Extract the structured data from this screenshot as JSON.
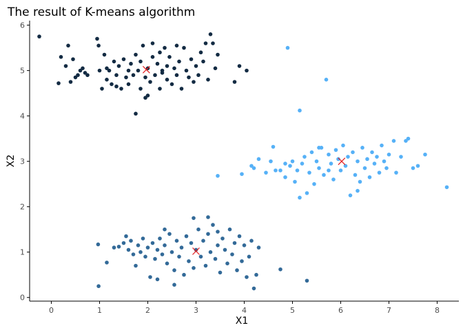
{
  "chart_data": {
    "type": "scatter",
    "title": "The result of K-means algorithm",
    "xlabel": "X1",
    "ylabel": "X2",
    "xlim": [
      -0.45,
      8.45
    ],
    "ylim": [
      -0.08,
      6.1
    ],
    "x_ticks": [
      0,
      1,
      2,
      3,
      4,
      5,
      6,
      7,
      8
    ],
    "y_ticks": [
      0,
      1,
      2,
      3,
      4,
      5,
      6
    ],
    "grid": false,
    "legend": "none",
    "colors": {
      "cluster_1": "#132b43",
      "cluster_2": "#336a98",
      "cluster_3": "#56b1f7",
      "centroid": "#e31a1c",
      "axis": "#000000",
      "tick_label": "#4d4d4d"
    },
    "series": [
      {
        "points": [
          [
            -0.25,
            5.75
          ],
          [
            0.15,
            4.72
          ],
          [
            0.2,
            5.3
          ],
          [
            0.3,
            5.1
          ],
          [
            0.35,
            5.55
          ],
          [
            0.4,
            4.75
          ],
          [
            0.45,
            5.25
          ],
          [
            0.5,
            4.85
          ],
          [
            0.55,
            4.9
          ],
          [
            0.6,
            5.0
          ],
          [
            0.65,
            5.05
          ],
          [
            0.75,
            4.9
          ],
          [
            0.95,
            5.7
          ],
          [
            0.98,
            5.55
          ],
          [
            1.0,
            5.0
          ],
          [
            1.05,
            4.6
          ],
          [
            1.1,
            5.35
          ],
          [
            1.15,
            4.8
          ],
          [
            1.15,
            5.05
          ],
          [
            1.2,
            5.0
          ],
          [
            1.25,
            4.7
          ],
          [
            1.3,
            5.2
          ],
          [
            1.35,
            4.9
          ],
          [
            1.4,
            5.1
          ],
          [
            1.45,
            4.6
          ],
          [
            1.5,
            5.25
          ],
          [
            1.55,
            4.85
          ],
          [
            1.6,
            5.0
          ],
          [
            1.6,
            4.7
          ],
          [
            1.65,
            5.15
          ],
          [
            1.7,
            4.9
          ],
          [
            1.75,
            5.35
          ],
          [
            1.75,
            4.05
          ],
          [
            1.8,
            5.0
          ],
          [
            1.85,
            5.2
          ],
          [
            1.85,
            4.6
          ],
          [
            1.9,
            5.55
          ],
          [
            1.95,
            4.85
          ],
          [
            2.0,
            5.05
          ],
          [
            2.0,
            4.45
          ],
          [
            2.05,
            4.75
          ],
          [
            2.1,
            5.6
          ],
          [
            2.1,
            5.3
          ],
          [
            2.15,
            4.9
          ],
          [
            2.2,
            5.15
          ],
          [
            2.25,
            4.6
          ],
          [
            2.25,
            5.4
          ],
          [
            2.3,
            4.95
          ],
          [
            2.3,
            5.0
          ],
          [
            2.35,
            5.5
          ],
          [
            2.4,
            4.8
          ],
          [
            2.4,
            5.1
          ],
          [
            2.45,
            5.3
          ],
          [
            2.5,
            4.7
          ],
          [
            2.55,
            5.05
          ],
          [
            2.6,
            4.9
          ],
          [
            2.65,
            5.2
          ],
          [
            2.7,
            4.6
          ],
          [
            2.75,
            5.5
          ],
          [
            2.8,
            5.0
          ],
          [
            2.85,
            4.85
          ],
          [
            2.9,
            5.25
          ],
          [
            2.95,
            4.75
          ],
          [
            3.0,
            5.1
          ],
          [
            3.05,
            4.9
          ],
          [
            3.1,
            5.4
          ],
          [
            3.15,
            5.2
          ],
          [
            3.2,
            5.6
          ],
          [
            3.25,
            4.8
          ],
          [
            3.3,
            5.8
          ],
          [
            3.35,
            5.6
          ],
          [
            3.4,
            5.05
          ],
          [
            3.45,
            5.35
          ],
          [
            3.8,
            4.75
          ],
          [
            3.9,
            5.1
          ],
          [
            4.05,
            5.0
          ],
          [
            1.95,
            4.4
          ],
          [
            2.6,
            5.55
          ],
          [
            0.7,
            4.95
          ],
          [
            1.35,
            4.65
          ]
        ]
      },
      {
        "points": [
          [
            0.97,
            1.17
          ],
          [
            0.98,
            0.25
          ],
          [
            1.15,
            0.77
          ],
          [
            1.3,
            1.1
          ],
          [
            1.4,
            1.12
          ],
          [
            1.5,
            1.2
          ],
          [
            1.55,
            1.35
          ],
          [
            1.6,
            1.05
          ],
          [
            1.65,
            1.25
          ],
          [
            1.7,
            0.95
          ],
          [
            1.75,
            0.7
          ],
          [
            1.8,
            1.15
          ],
          [
            1.85,
            1.0
          ],
          [
            1.9,
            1.3
          ],
          [
            1.95,
            0.9
          ],
          [
            2.0,
            1.1
          ],
          [
            2.05,
            0.45
          ],
          [
            2.1,
            1.2
          ],
          [
            2.15,
            0.85
          ],
          [
            2.2,
            1.05
          ],
          [
            2.2,
            0.4
          ],
          [
            2.25,
            1.3
          ],
          [
            2.3,
            0.95
          ],
          [
            2.35,
            1.15
          ],
          [
            2.4,
            0.75
          ],
          [
            2.45,
            1.4
          ],
          [
            2.5,
            1.0
          ],
          [
            2.55,
            0.6
          ],
          [
            2.6,
            1.25
          ],
          [
            2.65,
            0.9
          ],
          [
            2.7,
            1.1
          ],
          [
            2.75,
            0.5
          ],
          [
            2.8,
            1.35
          ],
          [
            2.85,
            0.8
          ],
          [
            2.9,
            1.2
          ],
          [
            2.95,
            0.65
          ],
          [
            3.0,
            1.05
          ],
          [
            3.05,
            1.5
          ],
          [
            3.1,
            0.9
          ],
          [
            3.15,
            1.25
          ],
          [
            3.2,
            0.7
          ],
          [
            3.25,
            1.4
          ],
          [
            3.3,
            1.0
          ],
          [
            3.35,
            1.6
          ],
          [
            3.4,
            0.85
          ],
          [
            3.45,
            1.15
          ],
          [
            3.5,
            0.55
          ],
          [
            3.55,
            1.3
          ],
          [
            3.6,
            1.05
          ],
          [
            3.65,
            0.75
          ],
          [
            3.7,
            1.5
          ],
          [
            3.75,
            0.95
          ],
          [
            3.8,
            1.2
          ],
          [
            3.85,
            0.6
          ],
          [
            3.9,
            1.35
          ],
          [
            3.95,
            0.8
          ],
          [
            4.0,
            1.15
          ],
          [
            4.05,
            0.45
          ],
          [
            4.1,
            0.9
          ],
          [
            4.15,
            1.25
          ],
          [
            4.2,
            0.2
          ],
          [
            4.25,
            0.5
          ],
          [
            4.3,
            1.1
          ],
          [
            4.75,
            0.62
          ],
          [
            5.3,
            0.37
          ],
          [
            2.55,
            0.28
          ],
          [
            3.25,
            1.77
          ],
          [
            2.95,
            1.75
          ],
          [
            3.45,
            1.45
          ],
          [
            2.35,
            1.5
          ]
        ]
      },
      {
        "points": [
          [
            3.45,
            2.68
          ],
          [
            3.95,
            2.72
          ],
          [
            4.15,
            2.9
          ],
          [
            4.2,
            2.85
          ],
          [
            4.3,
            3.05
          ],
          [
            4.45,
            2.75
          ],
          [
            4.55,
            3.0
          ],
          [
            4.6,
            3.32
          ],
          [
            4.65,
            2.8
          ],
          [
            4.75,
            2.8
          ],
          [
            4.85,
            2.65
          ],
          [
            4.9,
            5.5
          ],
          [
            4.95,
            2.9
          ],
          [
            5.0,
            3.0
          ],
          [
            5.05,
            2.55
          ],
          [
            5.1,
            2.8
          ],
          [
            5.15,
            2.2
          ],
          [
            5.15,
            4.12
          ],
          [
            5.2,
            2.95
          ],
          [
            5.25,
            3.1
          ],
          [
            5.3,
            2.3
          ],
          [
            5.35,
            2.75
          ],
          [
            5.4,
            3.2
          ],
          [
            5.45,
            2.5
          ],
          [
            5.5,
            3.0
          ],
          [
            5.55,
            2.85
          ],
          [
            5.6,
            3.3
          ],
          [
            5.65,
            2.7
          ],
          [
            5.7,
            4.8
          ],
          [
            5.75,
            3.15
          ],
          [
            5.8,
            2.95
          ],
          [
            5.85,
            2.6
          ],
          [
            5.9,
            3.25
          ],
          [
            5.95,
            3.05
          ],
          [
            6.0,
            2.8
          ],
          [
            6.05,
            3.35
          ],
          [
            6.1,
            2.9
          ],
          [
            6.15,
            3.1
          ],
          [
            6.2,
            2.25
          ],
          [
            6.25,
            3.2
          ],
          [
            6.3,
            2.7
          ],
          [
            6.35,
            3.0
          ],
          [
            6.4,
            2.55
          ],
          [
            6.45,
            3.3
          ],
          [
            6.5,
            2.85
          ],
          [
            6.55,
            3.05
          ],
          [
            6.6,
            2.65
          ],
          [
            6.65,
            3.2
          ],
          [
            6.7,
            2.95
          ],
          [
            6.75,
            3.1
          ],
          [
            6.8,
            2.75
          ],
          [
            6.85,
            3.35
          ],
          [
            6.9,
            3.0
          ],
          [
            6.95,
            2.85
          ],
          [
            7.0,
            3.15
          ],
          [
            7.1,
            3.45
          ],
          [
            7.15,
            2.75
          ],
          [
            7.25,
            3.1
          ],
          [
            7.35,
            3.45
          ],
          [
            7.4,
            3.5
          ],
          [
            7.5,
            2.85
          ],
          [
            7.6,
            2.9
          ],
          [
            7.75,
            3.15
          ],
          [
            8.2,
            2.43
          ],
          [
            5.55,
            3.3
          ],
          [
            6.35,
            2.35
          ],
          [
            4.85,
            2.95
          ],
          [
            5.75,
            2.8
          ]
        ]
      }
    ],
    "centroids": [
      [
        1.97,
        5.02
      ],
      [
        3.0,
        1.02
      ],
      [
        6.02,
        3.0
      ]
    ]
  }
}
